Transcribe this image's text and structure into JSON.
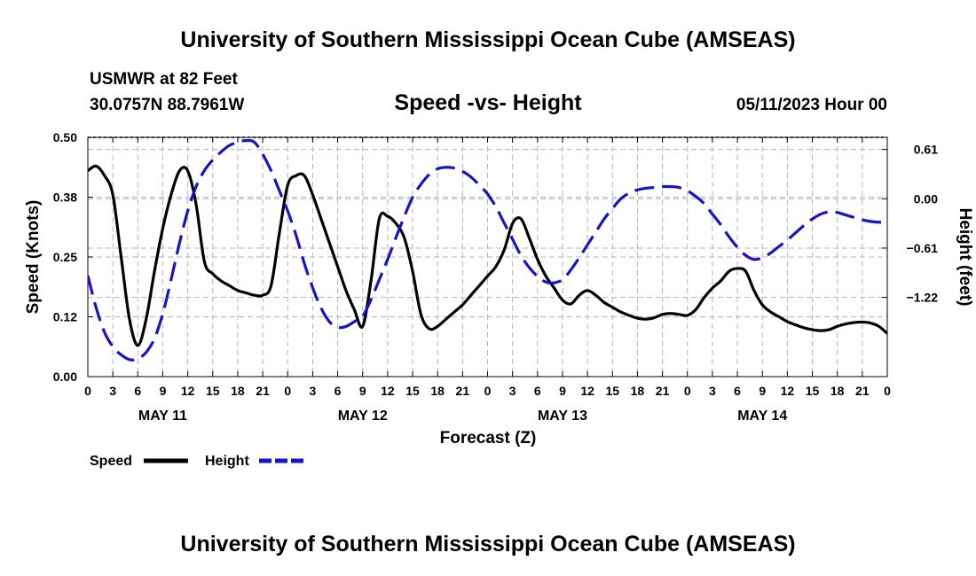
{
  "page": {
    "title": "University of Southern Mississippi Ocean Cube (AMSEAS)",
    "footer_title": "University of Southern Mississippi Ocean Cube (AMSEAS)"
  },
  "chart_data": {
    "type": "line",
    "station": "USMWR at 82 Feet",
    "location": "30.0757N  88.7961W",
    "title": "Speed -vs- Height",
    "datetime": "05/11/2023 Hour 00",
    "xlabel": "Forecast (Z)",
    "ylabel": "Speed (Knots)",
    "y2label": "Height (feet)",
    "xlim": [
      0,
      96
    ],
    "ylim": [
      0,
      0.5
    ],
    "y2lim": [
      -2.2,
      0.76
    ],
    "x_ticks": [
      0,
      3,
      6,
      9,
      12,
      15,
      18,
      21,
      24,
      27,
      30,
      33,
      36,
      39,
      42,
      45,
      48,
      51,
      54,
      57,
      60,
      63,
      66,
      69,
      72,
      75,
      78,
      81,
      84,
      87,
      90,
      93,
      96
    ],
    "x_tick_labels": [
      "0",
      "3",
      "6",
      "9",
      "12",
      "15",
      "18",
      "21",
      "0",
      "3",
      "6",
      "9",
      "12",
      "15",
      "18",
      "21",
      "0",
      "3",
      "6",
      "9",
      "12",
      "15",
      "18",
      "21",
      "0",
      "3",
      "6",
      "9",
      "12",
      "15",
      "18",
      "21",
      "0"
    ],
    "day_labels": [
      {
        "x": 9,
        "label": "MAY 11"
      },
      {
        "x": 33,
        "label": "MAY 12"
      },
      {
        "x": 57,
        "label": "MAY 13"
      },
      {
        "x": 81,
        "label": "MAY 14"
      }
    ],
    "y_ticks": [
      0.0,
      0.125,
      0.25,
      0.375,
      0.5
    ],
    "y_tick_labels": [
      "0.00",
      "0.12",
      "0.25",
      "0.38",
      "0.50"
    ],
    "y2_ticks": [
      0.61,
      0.0,
      -0.61,
      -1.22
    ],
    "y2_tick_labels": [
      "0.61",
      "0.00",
      "−0.61",
      "−1.22"
    ],
    "legend": [
      {
        "name": "Speed",
        "color": "#000000",
        "dash": "solid"
      },
      {
        "name": "Height",
        "color": "#1515c8",
        "dash": "dashed"
      }
    ],
    "series": [
      {
        "name": "Speed",
        "axis": "left",
        "color": "#000000",
        "x": [
          0,
          1,
          2,
          3,
          4,
          5,
          6,
          7,
          8,
          9,
          10,
          11,
          12,
          13,
          14,
          15,
          16,
          17,
          18,
          19,
          20,
          21,
          22,
          23,
          24,
          25,
          26,
          27,
          28,
          29,
          30,
          31,
          32,
          33,
          34,
          35,
          36,
          37,
          38,
          39,
          40,
          41,
          42,
          43,
          44,
          45,
          46,
          47,
          48,
          49,
          50,
          51,
          52,
          53,
          54,
          55,
          56,
          57,
          58,
          59,
          60,
          61,
          62,
          63,
          64,
          65,
          66,
          67,
          68,
          69,
          70,
          71,
          72,
          73,
          74,
          75,
          76,
          77,
          78,
          79,
          80,
          81,
          82,
          83,
          84,
          85,
          86,
          87,
          88,
          89,
          90,
          91,
          92,
          93,
          94,
          95,
          96
        ],
        "values": [
          0.43,
          0.44,
          0.42,
          0.38,
          0.25,
          0.12,
          0.065,
          0.12,
          0.22,
          0.31,
          0.38,
          0.43,
          0.43,
          0.36,
          0.24,
          0.215,
          0.2,
          0.19,
          0.18,
          0.175,
          0.17,
          0.17,
          0.19,
          0.3,
          0.4,
          0.42,
          0.42,
          0.38,
          0.33,
          0.28,
          0.23,
          0.18,
          0.14,
          0.105,
          0.2,
          0.33,
          0.335,
          0.32,
          0.29,
          0.22,
          0.13,
          0.1,
          0.105,
          0.12,
          0.135,
          0.15,
          0.17,
          0.19,
          0.21,
          0.23,
          0.265,
          0.32,
          0.33,
          0.29,
          0.245,
          0.21,
          0.185,
          0.16,
          0.152,
          0.17,
          0.18,
          0.17,
          0.155,
          0.145,
          0.135,
          0.128,
          0.122,
          0.12,
          0.123,
          0.13,
          0.132,
          0.13,
          0.128,
          0.14,
          0.165,
          0.185,
          0.2,
          0.22,
          0.226,
          0.22,
          0.18,
          0.15,
          0.135,
          0.125,
          0.115,
          0.108,
          0.102,
          0.098,
          0.096,
          0.098,
          0.105,
          0.11,
          0.113,
          0.114,
          0.112,
          0.105,
          0.09
        ]
      },
      {
        "name": "Height",
        "axis": "right",
        "color": "#1515c8",
        "x": [
          0,
          1,
          2,
          3,
          4,
          5,
          6,
          7,
          8,
          9,
          10,
          11,
          12,
          13,
          14,
          15,
          16,
          17,
          18,
          19,
          20,
          21,
          22,
          23,
          24,
          25,
          26,
          27,
          28,
          29,
          30,
          31,
          32,
          33,
          34,
          35,
          36,
          37,
          38,
          39,
          40,
          41,
          42,
          43,
          44,
          45,
          46,
          47,
          48,
          49,
          50,
          51,
          52,
          53,
          54,
          55,
          56,
          57,
          58,
          59,
          60,
          61,
          62,
          63,
          64,
          65,
          66,
          67,
          68,
          69,
          70,
          71,
          72,
          73,
          74,
          75,
          76,
          77,
          78,
          79,
          80,
          81,
          82,
          83,
          84,
          85,
          86,
          87,
          88,
          89,
          90,
          91,
          92,
          93,
          94,
          95,
          96
        ],
        "values": [
          -0.95,
          -1.35,
          -1.65,
          -1.83,
          -1.93,
          -1.99,
          -1.98,
          -1.9,
          -1.73,
          -1.42,
          -1.0,
          -0.55,
          -0.15,
          0.15,
          0.35,
          0.48,
          0.58,
          0.66,
          0.7,
          0.72,
          0.7,
          0.55,
          0.35,
          0.1,
          -0.15,
          -0.45,
          -0.8,
          -1.1,
          -1.35,
          -1.52,
          -1.59,
          -1.58,
          -1.52,
          -1.45,
          -1.25,
          -1.0,
          -0.75,
          -0.48,
          -0.22,
          0.02,
          0.18,
          0.3,
          0.37,
          0.39,
          0.38,
          0.34,
          0.27,
          0.17,
          0.06,
          -0.1,
          -0.3,
          -0.5,
          -0.7,
          -0.85,
          -0.96,
          -1.03,
          -1.04,
          -1.0,
          -0.88,
          -0.73,
          -0.57,
          -0.41,
          -0.25,
          -0.12,
          0.0,
          0.07,
          0.11,
          0.13,
          0.14,
          0.15,
          0.15,
          0.14,
          0.1,
          0.03,
          -0.06,
          -0.19,
          -0.32,
          -0.47,
          -0.6,
          -0.7,
          -0.75,
          -0.73,
          -0.67,
          -0.59,
          -0.51,
          -0.42,
          -0.33,
          -0.25,
          -0.19,
          -0.16,
          -0.17,
          -0.2,
          -0.23,
          -0.26,
          -0.28,
          -0.29,
          -0.29
        ]
      }
    ]
  }
}
